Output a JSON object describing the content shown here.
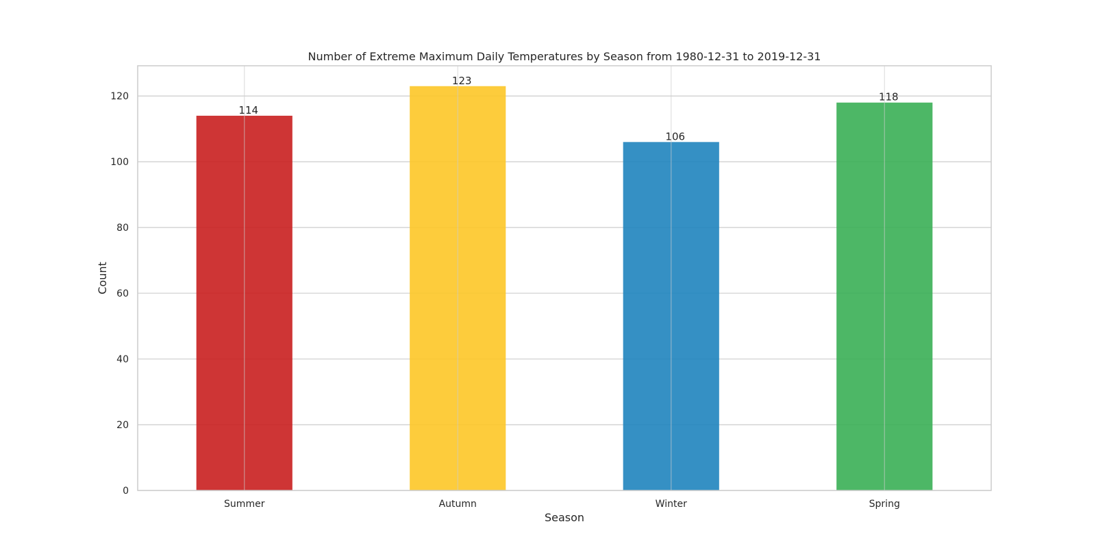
{
  "chart_data": {
    "type": "bar",
    "title": "Number of Extreme Maximum Daily Temperatures by Season from 1980-12-31 to 2019-12-31",
    "xlabel": "Season",
    "ylabel": "Count",
    "categories": [
      "Summer",
      "Autumn",
      "Winter",
      "Spring"
    ],
    "values": [
      114,
      123,
      106,
      118
    ],
    "colors": [
      "#c91f1f",
      "#fdc627",
      "#1f84be",
      "#3aaf55"
    ],
    "data_labels": [
      "114",
      "123",
      "106",
      "118"
    ],
    "ylim": [
      0,
      129.2
    ],
    "yticks": [
      0,
      20,
      40,
      60,
      80,
      100,
      120
    ],
    "ytick_labels": [
      "0",
      "20",
      "40",
      "60",
      "80",
      "100",
      "120"
    ],
    "grid": true,
    "legend": "none"
  }
}
